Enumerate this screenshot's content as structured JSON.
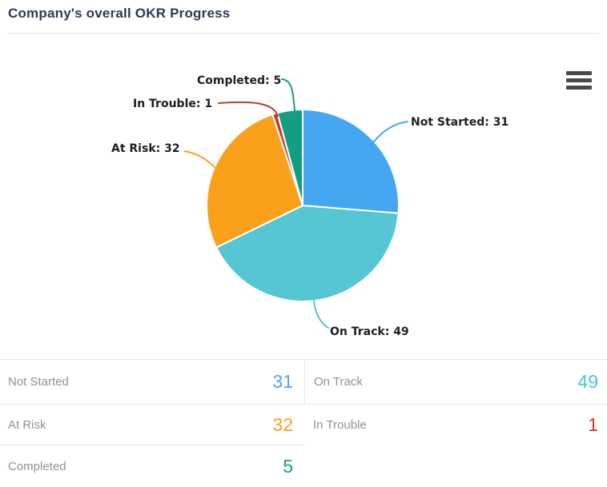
{
  "header": {
    "title": "Company's overall OKR Progress"
  },
  "chart_data": {
    "type": "pie",
    "title": "Company's overall OKR Progress",
    "categories": [
      "Not Started",
      "On Track",
      "At Risk",
      "In Trouble",
      "Completed"
    ],
    "values": [
      31,
      49,
      32,
      1,
      5
    ],
    "colors": [
      "#45a6f2",
      "#56c5d4",
      "#f9a11b",
      "#c23b2c",
      "#139e82"
    ],
    "label_format": "{name}: {value}",
    "legend_position": "none",
    "grid": false
  },
  "context_menu": {
    "icon": "hamburger-icon"
  },
  "summary_table": {
    "rows": [
      {
        "label": "Not Started",
        "value": "31",
        "color": "#4da7f3"
      },
      {
        "label": "On Track",
        "value": "49",
        "color": "#4ec3d2"
      },
      {
        "label": "At Risk",
        "value": "32",
        "color": "#f99d26"
      },
      {
        "label": "In Trouble",
        "value": "1",
        "color": "#ce372c"
      },
      {
        "label": "Completed",
        "value": "5",
        "color": "#16a085"
      }
    ]
  }
}
